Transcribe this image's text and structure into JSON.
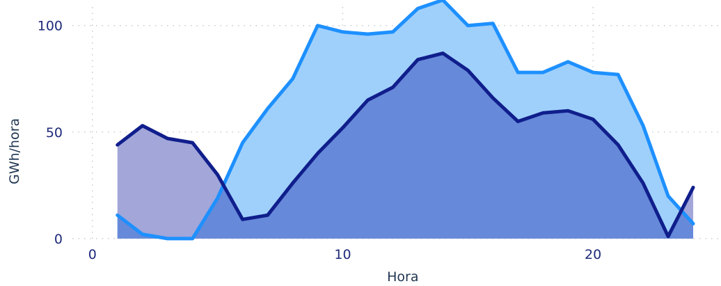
{
  "chart_data": {
    "type": "area",
    "xlabel": "Hora",
    "ylabel": "GWh/hora",
    "xlim": [
      -0.8,
      25.0
    ],
    "ylim": [
      -2,
      112
    ],
    "x_ticks": [
      0,
      10,
      20
    ],
    "y_ticks": [
      0,
      50,
      100
    ],
    "grid": true,
    "colors": {
      "series_a_line": "#1e90ff",
      "series_a_fill": "#9fd0fb",
      "series_b_line": "#101e8c",
      "series_b_fill": "#a2a6d9",
      "overlap_fill": "#6689d9",
      "tick_text": "#1e2a7a",
      "axis_title_text": "#1f3550",
      "grid": "#b9bec6"
    },
    "series": [
      {
        "x": [
          1,
          2,
          3,
          4,
          5,
          6,
          7,
          8,
          9,
          10,
          11,
          12,
          13,
          14,
          15,
          16,
          17,
          18,
          19,
          20,
          21,
          22,
          23,
          24
        ],
        "values": [
          11,
          2,
          0,
          0,
          19,
          45,
          61,
          75,
          100,
          97,
          96,
          97,
          108,
          112,
          100,
          101,
          78,
          78,
          83,
          78,
          77,
          53,
          20,
          7
        ]
      },
      {
        "x": [
          1,
          2,
          3,
          4,
          5,
          6,
          7,
          8,
          9,
          10,
          11,
          12,
          13,
          14,
          15,
          16,
          17,
          18,
          19,
          20,
          21,
          22,
          23,
          24
        ],
        "values": [
          44,
          53,
          47,
          45,
          30,
          9,
          11,
          26,
          40,
          52,
          65,
          71,
          84,
          87,
          79,
          66,
          55,
          59,
          60,
          56,
          44,
          26,
          1,
          24
        ]
      }
    ]
  }
}
